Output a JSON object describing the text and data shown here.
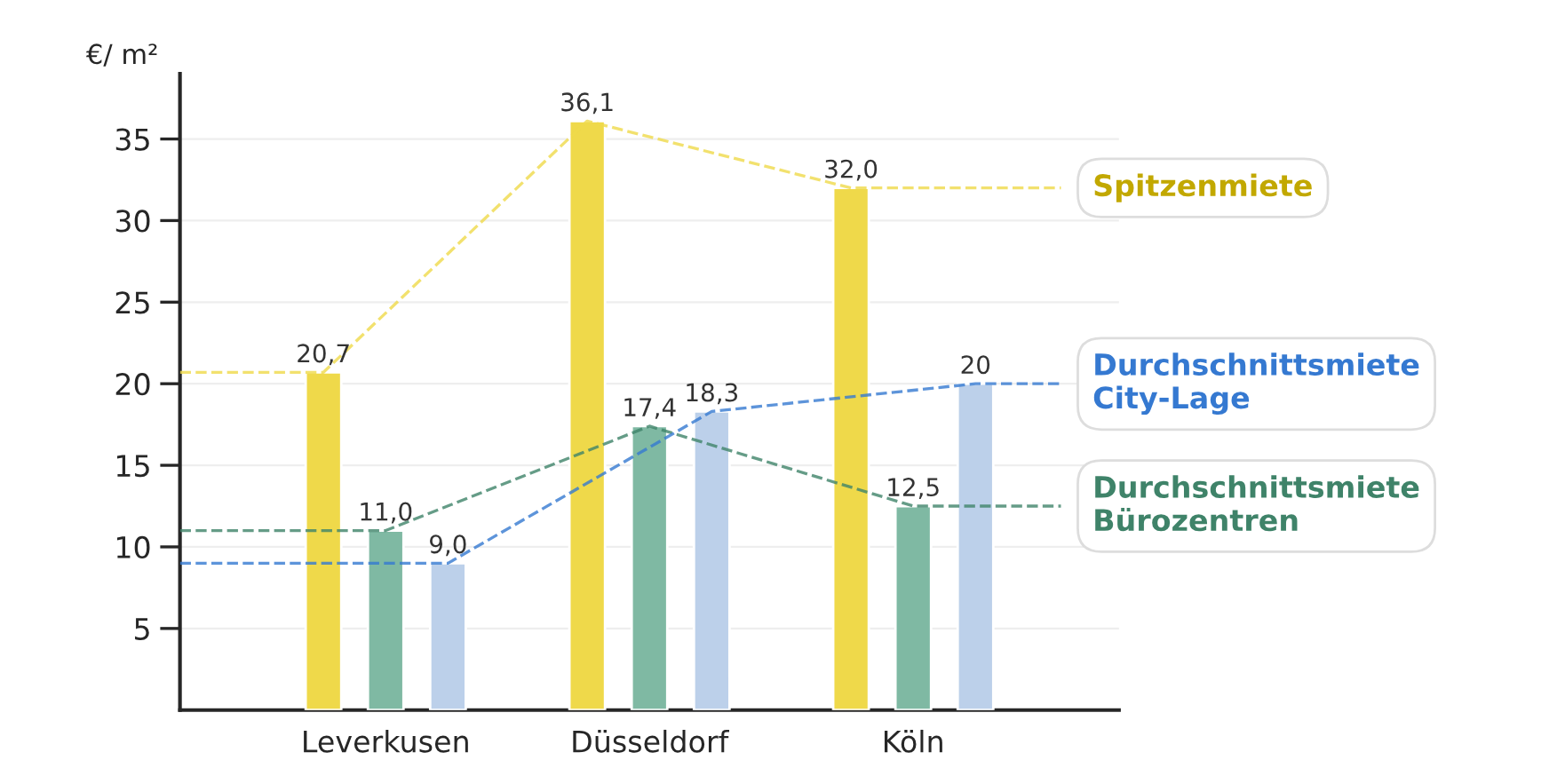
{
  "chart_data": {
    "type": "bar",
    "ylabel": "€/ m²",
    "categories": [
      "Leverkusen",
      "Düsseldorf",
      "Köln"
    ],
    "series": [
      {
        "name": "Spitzenmiete",
        "color": "#efd94a",
        "values": [
          20.7,
          36.1,
          32.0
        ],
        "value_labels": [
          "20,7",
          "36,1",
          "32,0"
        ],
        "line_style": "dashed"
      },
      {
        "name": "Durchschnittsmiete Bürozentren",
        "color": "#7fb9a3",
        "values": [
          11.0,
          17.4,
          12.5
        ],
        "value_labels": [
          "11,0",
          "17,4",
          "12,5"
        ],
        "line_style": "dashed"
      },
      {
        "name": "Durchschnittsmiete City-Lage",
        "color": "#bcd0ea",
        "values": [
          9.0,
          18.3,
          20
        ],
        "value_labels": [
          "9,0",
          "18,3",
          "20"
        ],
        "line_style": "dashed"
      }
    ],
    "ylim": [
      0,
      39
    ],
    "yticks": [
      5,
      10,
      15,
      20,
      25,
      30,
      35
    ],
    "grid": "y",
    "legend": "right"
  }
}
